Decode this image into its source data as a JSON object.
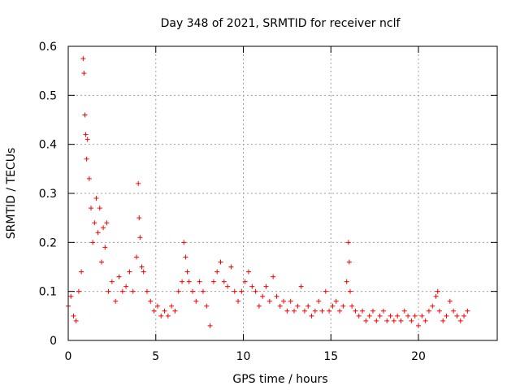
{
  "chart_data": {
    "type": "scatter",
    "title": "Day 348 of 2021, SRMTID for receiver nclf",
    "xlabel": "GPS time / hours",
    "ylabel": "SRMTID / TECUs",
    "xlim": [
      0,
      24.5
    ],
    "ylim": [
      0,
      0.6
    ],
    "xticks": [
      0,
      5,
      10,
      15,
      20
    ],
    "xtick_labels": [
      "0",
      "5",
      "10",
      "15",
      "20"
    ],
    "yticks": [
      0,
      0.1,
      0.2,
      0.3,
      0.4,
      0.5,
      0.6
    ],
    "ytick_labels": [
      "0",
      "0.1",
      "0.2",
      "0.3",
      "0.4",
      "0.5",
      "0.6"
    ],
    "grid": true,
    "marker": "+",
    "color": "#ff0000",
    "series": [
      {
        "name": "SRMTID",
        "x": [
          0.0,
          0.15,
          0.3,
          0.45,
          0.6,
          0.75,
          0.85,
          0.9,
          0.95,
          1.0,
          1.05,
          1.1,
          1.2,
          1.3,
          1.4,
          1.5,
          1.6,
          1.7,
          1.8,
          1.9,
          2.0,
          2.1,
          2.2,
          2.3,
          2.5,
          2.7,
          2.9,
          3.1,
          3.3,
          3.5,
          3.7,
          3.9,
          4.0,
          4.05,
          4.1,
          4.2,
          4.3,
          4.5,
          4.7,
          4.9,
          5.1,
          5.3,
          5.5,
          5.7,
          5.9,
          6.1,
          6.3,
          6.5,
          6.6,
          6.7,
          6.8,
          6.9,
          7.1,
          7.3,
          7.5,
          7.7,
          7.9,
          8.1,
          8.3,
          8.5,
          8.7,
          8.9,
          9.1,
          9.3,
          9.5,
          9.7,
          9.9,
          10.1,
          10.3,
          10.5,
          10.7,
          10.9,
          11.1,
          11.3,
          11.5,
          11.7,
          11.9,
          12.1,
          12.3,
          12.5,
          12.7,
          12.9,
          13.1,
          13.3,
          13.5,
          13.7,
          13.9,
          14.1,
          14.3,
          14.5,
          14.7,
          14.9,
          15.1,
          15.3,
          15.5,
          15.7,
          15.9,
          16.0,
          16.05,
          16.1,
          16.2,
          16.4,
          16.6,
          16.8,
          17.0,
          17.2,
          17.4,
          17.6,
          17.8,
          18.0,
          18.2,
          18.4,
          18.6,
          18.8,
          19.0,
          19.2,
          19.4,
          19.6,
          19.8,
          20.0,
          20.2,
          20.4,
          20.6,
          20.8,
          21.0,
          21.1,
          21.2,
          21.4,
          21.6,
          21.8,
          22.0,
          22.2,
          22.4,
          22.6,
          22.8
        ],
        "y": [
          0.07,
          0.09,
          0.05,
          0.04,
          0.1,
          0.14,
          0.575,
          0.545,
          0.46,
          0.42,
          0.37,
          0.41,
          0.33,
          0.27,
          0.2,
          0.24,
          0.29,
          0.22,
          0.27,
          0.16,
          0.23,
          0.19,
          0.24,
          0.1,
          0.12,
          0.08,
          0.13,
          0.1,
          0.11,
          0.14,
          0.1,
          0.17,
          0.32,
          0.25,
          0.21,
          0.15,
          0.14,
          0.1,
          0.08,
          0.06,
          0.07,
          0.05,
          0.06,
          0.05,
          0.07,
          0.06,
          0.1,
          0.12,
          0.2,
          0.17,
          0.14,
          0.12,
          0.1,
          0.08,
          0.12,
          0.1,
          0.07,
          0.03,
          0.12,
          0.14,
          0.16,
          0.12,
          0.11,
          0.15,
          0.1,
          0.08,
          0.1,
          0.12,
          0.14,
          0.11,
          0.1,
          0.07,
          0.09,
          0.11,
          0.08,
          0.13,
          0.09,
          0.07,
          0.08,
          0.06,
          0.08,
          0.06,
          0.07,
          0.11,
          0.06,
          0.07,
          0.05,
          0.06,
          0.08,
          0.06,
          0.1,
          0.06,
          0.07,
          0.08,
          0.06,
          0.07,
          0.12,
          0.2,
          0.16,
          0.1,
          0.07,
          0.06,
          0.05,
          0.06,
          0.04,
          0.05,
          0.06,
          0.04,
          0.05,
          0.06,
          0.04,
          0.05,
          0.04,
          0.05,
          0.04,
          0.06,
          0.05,
          0.04,
          0.05,
          0.03,
          0.05,
          0.04,
          0.06,
          0.07,
          0.09,
          0.1,
          0.06,
          0.04,
          0.05,
          0.08,
          0.06,
          0.05,
          0.04,
          0.05,
          0.06
        ]
      }
    ]
  }
}
